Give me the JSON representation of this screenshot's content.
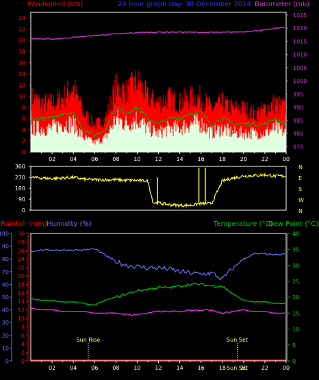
{
  "header": {
    "left_label": "Windspeed (kts)",
    "title": "24 hour graph day: 30 December 2014",
    "right_label": "Barometer (mb)"
  },
  "panel3": {
    "rain_label": "Rainfall (mm)",
    "humidity_label": "Humidity (%)",
    "temp_label": "Temperature (°C)",
    "dew_label": "Dew Point (°C)",
    "sunrise": "Sun Rise",
    "sunset": "Sun Set",
    "sunset_overlap": "Sun Set"
  },
  "colors": {
    "wind_gust": "#ff0000",
    "wind_avg": "#e0ffe0",
    "wind_line": "#00b000",
    "barometer": "#cc33cc",
    "direction": "#ffff33",
    "humidity": "#7070ff",
    "temperature": "#00cc00",
    "dewpoint": "#ff33ff",
    "rainfall": "#ff0000"
  },
  "chart_data": [
    {
      "type": "area",
      "title": "24 hour graph day: 30 December 2014",
      "x_ticks": [
        "02",
        "04",
        "06",
        "08",
        "10",
        "12",
        "14",
        "16",
        "18",
        "20",
        "22",
        "00"
      ],
      "xlabel": "",
      "ylabel": "Windspeed (kts)",
      "ylim": [
        0,
        25
      ],
      "y_ticks": [
        0,
        2,
        4,
        6,
        8,
        10,
        12,
        14,
        16,
        18,
        20,
        22,
        24
      ],
      "y2label": "Barometer (mb)",
      "y2lim": [
        973,
        1026
      ],
      "y2_ticks": [
        975,
        980,
        985,
        990,
        995,
        1000,
        1005,
        1010,
        1015,
        1020,
        1025
      ],
      "series": [
        {
          "name": "Windspeed (kts)",
          "role": "gust",
          "x_hours": [
            0,
            1,
            2,
            3,
            4,
            5,
            6,
            7,
            8,
            9,
            10,
            11,
            12,
            13,
            14,
            15,
            16,
            17,
            18,
            19,
            20,
            21,
            22,
            23,
            24
          ],
          "values": [
            10,
            9,
            9,
            10,
            12,
            7,
            5,
            6,
            12,
            11,
            13,
            10,
            9,
            10,
            9,
            10,
            10,
            8,
            9,
            8,
            8,
            7,
            8,
            9,
            8
          ]
        },
        {
          "name": "Windspeed (kts)",
          "role": "average",
          "x_hours": [
            0,
            1,
            2,
            3,
            4,
            5,
            6,
            7,
            8,
            9,
            10,
            11,
            12,
            13,
            14,
            15,
            16,
            17,
            18,
            19,
            20,
            21,
            22,
            23,
            24
          ],
          "values": [
            5,
            5,
            5,
            6,
            6,
            3,
            2,
            3,
            7,
            6,
            7,
            5,
            4,
            5,
            5,
            6,
            6,
            4,
            5,
            4,
            4,
            4,
            4,
            5,
            4
          ]
        },
        {
          "name": "Barometer (mb)",
          "axis": "right",
          "x_hours": [
            0,
            2,
            4,
            6,
            8,
            10,
            12,
            14,
            16,
            18,
            20,
            22,
            24
          ],
          "values": [
            1016,
            1015.8,
            1016.5,
            1017.2,
            1017.8,
            1018.3,
            1018.5,
            1018.5,
            1018.4,
            1018.4,
            1018.6,
            1019.3,
            1020.5
          ]
        }
      ]
    },
    {
      "type": "line",
      "ylabel": "",
      "ylim": [
        0,
        360
      ],
      "y_ticks": [
        0,
        90,
        180,
        270,
        360
      ],
      "y2_ticks": [
        "N",
        "W",
        "S",
        "E",
        "N"
      ],
      "x_ticks": [
        "02",
        "04",
        "06",
        "08",
        "10",
        "12",
        "14",
        "16",
        "18",
        "20",
        "22",
        "00"
      ],
      "series": [
        {
          "name": "",
          "x_hours": [
            0,
            1,
            2,
            3,
            4,
            5,
            6,
            7,
            8,
            9,
            10,
            11,
            11.5,
            12,
            13,
            14,
            15,
            16,
            17,
            18,
            19,
            20,
            21,
            22,
            23,
            24
          ],
          "values": [
            270,
            265,
            260,
            265,
            270,
            255,
            250,
            250,
            250,
            245,
            245,
            240,
            60,
            60,
            45,
            40,
            40,
            55,
            55,
            240,
            265,
            280,
            285,
            290,
            280,
            280
          ]
        }
      ]
    },
    {
      "type": "line",
      "x_ticks": [
        "02",
        "04",
        "06",
        "08",
        "10",
        "12",
        "14",
        "16",
        "18",
        "20",
        "22",
        "00"
      ],
      "ylabel": "Humidity (%)",
      "ylim": [
        0,
        100
      ],
      "y_ticks": [
        0,
        10,
        20,
        30,
        40,
        50,
        60,
        70,
        80,
        90,
        100
      ],
      "y_rain_ticks": [
        0,
        2,
        4,
        6,
        8,
        10,
        12,
        14,
        16,
        18,
        20,
        22,
        24,
        26,
        28,
        30
      ],
      "y_rain_lim": [
        0,
        30
      ],
      "y2label": "Temperature (°C)",
      "y2lim": [
        0,
        40
      ],
      "y2_ticks": [
        0,
        5,
        10,
        15,
        20,
        25,
        30,
        35,
        40
      ],
      "series": [
        {
          "name": "Humidity (%)",
          "x_hours": [
            0,
            1,
            2,
            3,
            4,
            5,
            6,
            7,
            8,
            9,
            10,
            11,
            12,
            13,
            14,
            15,
            16,
            17,
            18,
            19,
            20,
            21,
            22,
            23,
            24
          ],
          "values": [
            86,
            87,
            87,
            87,
            87,
            87,
            88,
            83,
            78,
            75,
            74,
            73,
            73,
            72,
            70,
            69,
            68,
            69,
            64,
            73,
            80,
            84,
            84,
            83,
            84
          ]
        },
        {
          "name": "Temperature (°C)",
          "axis": "right",
          "x_hours": [
            0,
            1,
            2,
            3,
            4,
            5,
            6,
            7,
            8,
            9,
            10,
            11,
            12,
            13,
            14,
            15,
            16,
            17,
            18,
            19,
            20,
            21,
            22,
            23,
            24
          ],
          "values": [
            19.5,
            19,
            19,
            18.5,
            18.5,
            18,
            17.5,
            19,
            20,
            21,
            22,
            22.5,
            23,
            23,
            23.5,
            24,
            24,
            23.5,
            23.5,
            21,
            19,
            18.5,
            18.5,
            18,
            18
          ]
        },
        {
          "name": "Dew Point (°C)",
          "axis": "right",
          "x_hours": [
            0,
            1,
            2,
            3,
            4,
            5,
            6,
            7,
            8,
            9,
            10,
            11,
            12,
            13,
            14,
            15,
            16,
            17,
            18,
            19,
            20,
            21,
            22,
            23,
            24
          ],
          "values": [
            16.5,
            16,
            16,
            15.5,
            15.5,
            15.5,
            15,
            15,
            15,
            14.5,
            14.5,
            15,
            15.5,
            15.5,
            15.5,
            16,
            16,
            16,
            15,
            15.5,
            16,
            15.5,
            15.5,
            15,
            15
          ]
        },
        {
          "name": "Rainfall (mm)",
          "axis": "rain",
          "x_hours": [
            0,
            24
          ],
          "values": [
            0,
            0
          ]
        }
      ],
      "annotations": [
        {
          "text": "Sun Rise",
          "x_hours": 5.4
        },
        {
          "text": "Sun Set",
          "x_hours": 19.4
        }
      ]
    }
  ]
}
